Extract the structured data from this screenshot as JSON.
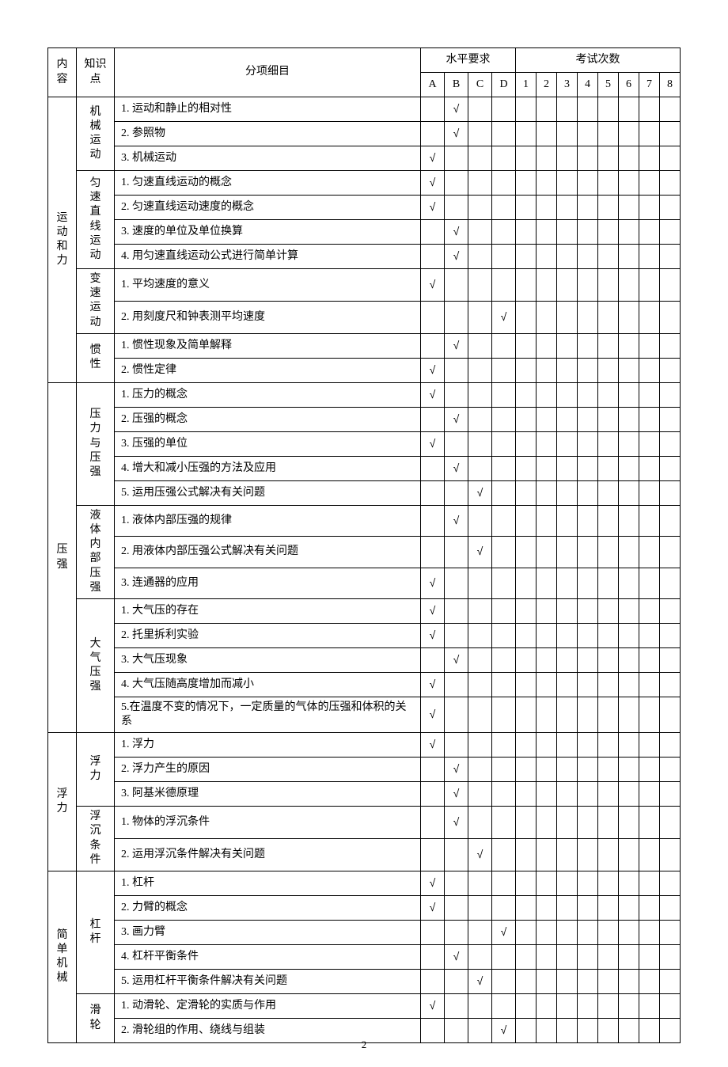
{
  "page_number": "2",
  "check_symbol": "√",
  "headers": {
    "category": "内容",
    "knowledge_point": "知识点",
    "item": "分项细目",
    "level_group": "水平要求",
    "count_group": "考试次数",
    "levels": [
      "A",
      "B",
      "C",
      "D"
    ],
    "counts": [
      "1",
      "2",
      "3",
      "4",
      "5",
      "6",
      "7",
      "8"
    ]
  },
  "categories": [
    {
      "name": "运动和力",
      "kps": [
        {
          "name": "机械运动",
          "items": [
            {
              "text": "1. 运动和静止的相对性",
              "level": "B"
            },
            {
              "text": "2. 参照物",
              "level": "B"
            },
            {
              "text": "3. 机械运动",
              "level": "A"
            }
          ]
        },
        {
          "name": "匀速直线运动",
          "items": [
            {
              "text": "1. 匀速直线运动的概念",
              "level": "A"
            },
            {
              "text": "2. 匀速直线运动速度的概念",
              "level": "A"
            },
            {
              "text": "3. 速度的单位及单位换算",
              "level": "B"
            },
            {
              "text": "4. 用匀速直线运动公式进行简单计算",
              "level": "B"
            }
          ]
        },
        {
          "name": "变速运动",
          "items": [
            {
              "text": "1. 平均速度的意义",
              "level": "A"
            },
            {
              "text": "2. 用刻度尺和钟表测平均速度",
              "level": "D"
            }
          ]
        },
        {
          "name": "惯性",
          "items": [
            {
              "text": "1. 惯性现象及简单解释",
              "level": "B"
            },
            {
              "text": "2. 惯性定律",
              "level": "A"
            }
          ]
        }
      ]
    },
    {
      "name": "压强",
      "kps": [
        {
          "name": "压力与压强",
          "items": [
            {
              "text": "1. 压力的概念",
              "level": "A"
            },
            {
              "text": "2. 压强的概念",
              "level": "B"
            },
            {
              "text": "3. 压强的单位",
              "level": "A"
            },
            {
              "text": "4. 增大和减小压强的方法及应用",
              "level": "B"
            },
            {
              "text": "5. 运用压强公式解决有关问题",
              "level": "C"
            }
          ]
        },
        {
          "name": "液体内部压强",
          "items": [
            {
              "text": "1. 液体内部压强的规律",
              "level": "B"
            },
            {
              "text": "2. 用液体内部压强公式解决有关问题",
              "level": "C"
            },
            {
              "text": "3. 连通器的应用",
              "level": "A"
            }
          ]
        },
        {
          "name": "大气压强",
          "items": [
            {
              "text": "1. 大气压的存在",
              "level": "A"
            },
            {
              "text": "2. 托里拆利实验",
              "level": "A"
            },
            {
              "text": "3. 大气压现象",
              "level": "B"
            },
            {
              "text": "4. 大气压随高度增加而减小",
              "level": "A"
            },
            {
              "text": "5.在温度不变的情况下，一定质量的气体的压强和体积的关系",
              "level": "A"
            }
          ]
        }
      ]
    },
    {
      "name": "浮力",
      "kps": [
        {
          "name": "浮力",
          "items": [
            {
              "text": "1. 浮力",
              "level": "A"
            },
            {
              "text": "2. 浮力产生的原因",
              "level": "B"
            },
            {
              "text": "3. 阿基米德原理",
              "level": "B"
            }
          ]
        },
        {
          "name": "浮沉条件",
          "items": [
            {
              "text": "1. 物体的浮沉条件",
              "level": "B"
            },
            {
              "text": "2. 运用浮沉条件解决有关问题",
              "level": "C"
            }
          ]
        }
      ]
    },
    {
      "name": "简单机械",
      "kps": [
        {
          "name": "杠杆",
          "items": [
            {
              "text": "1. 杠杆",
              "level": "A"
            },
            {
              "text": "2. 力臂的概念",
              "level": "A"
            },
            {
              "text": "3. 画力臂",
              "level": "D"
            },
            {
              "text": "4. 杠杆平衡条件",
              "level": "B"
            },
            {
              "text": "5. 运用杠杆平衡条件解决有关问题",
              "level": "C"
            }
          ]
        },
        {
          "name": "滑轮",
          "items": [
            {
              "text": "1. 动滑轮、定滑轮的实质与作用",
              "level": "A"
            },
            {
              "text": "2. 滑轮组的作用、绕线与组装",
              "level": "D"
            }
          ]
        }
      ]
    }
  ]
}
